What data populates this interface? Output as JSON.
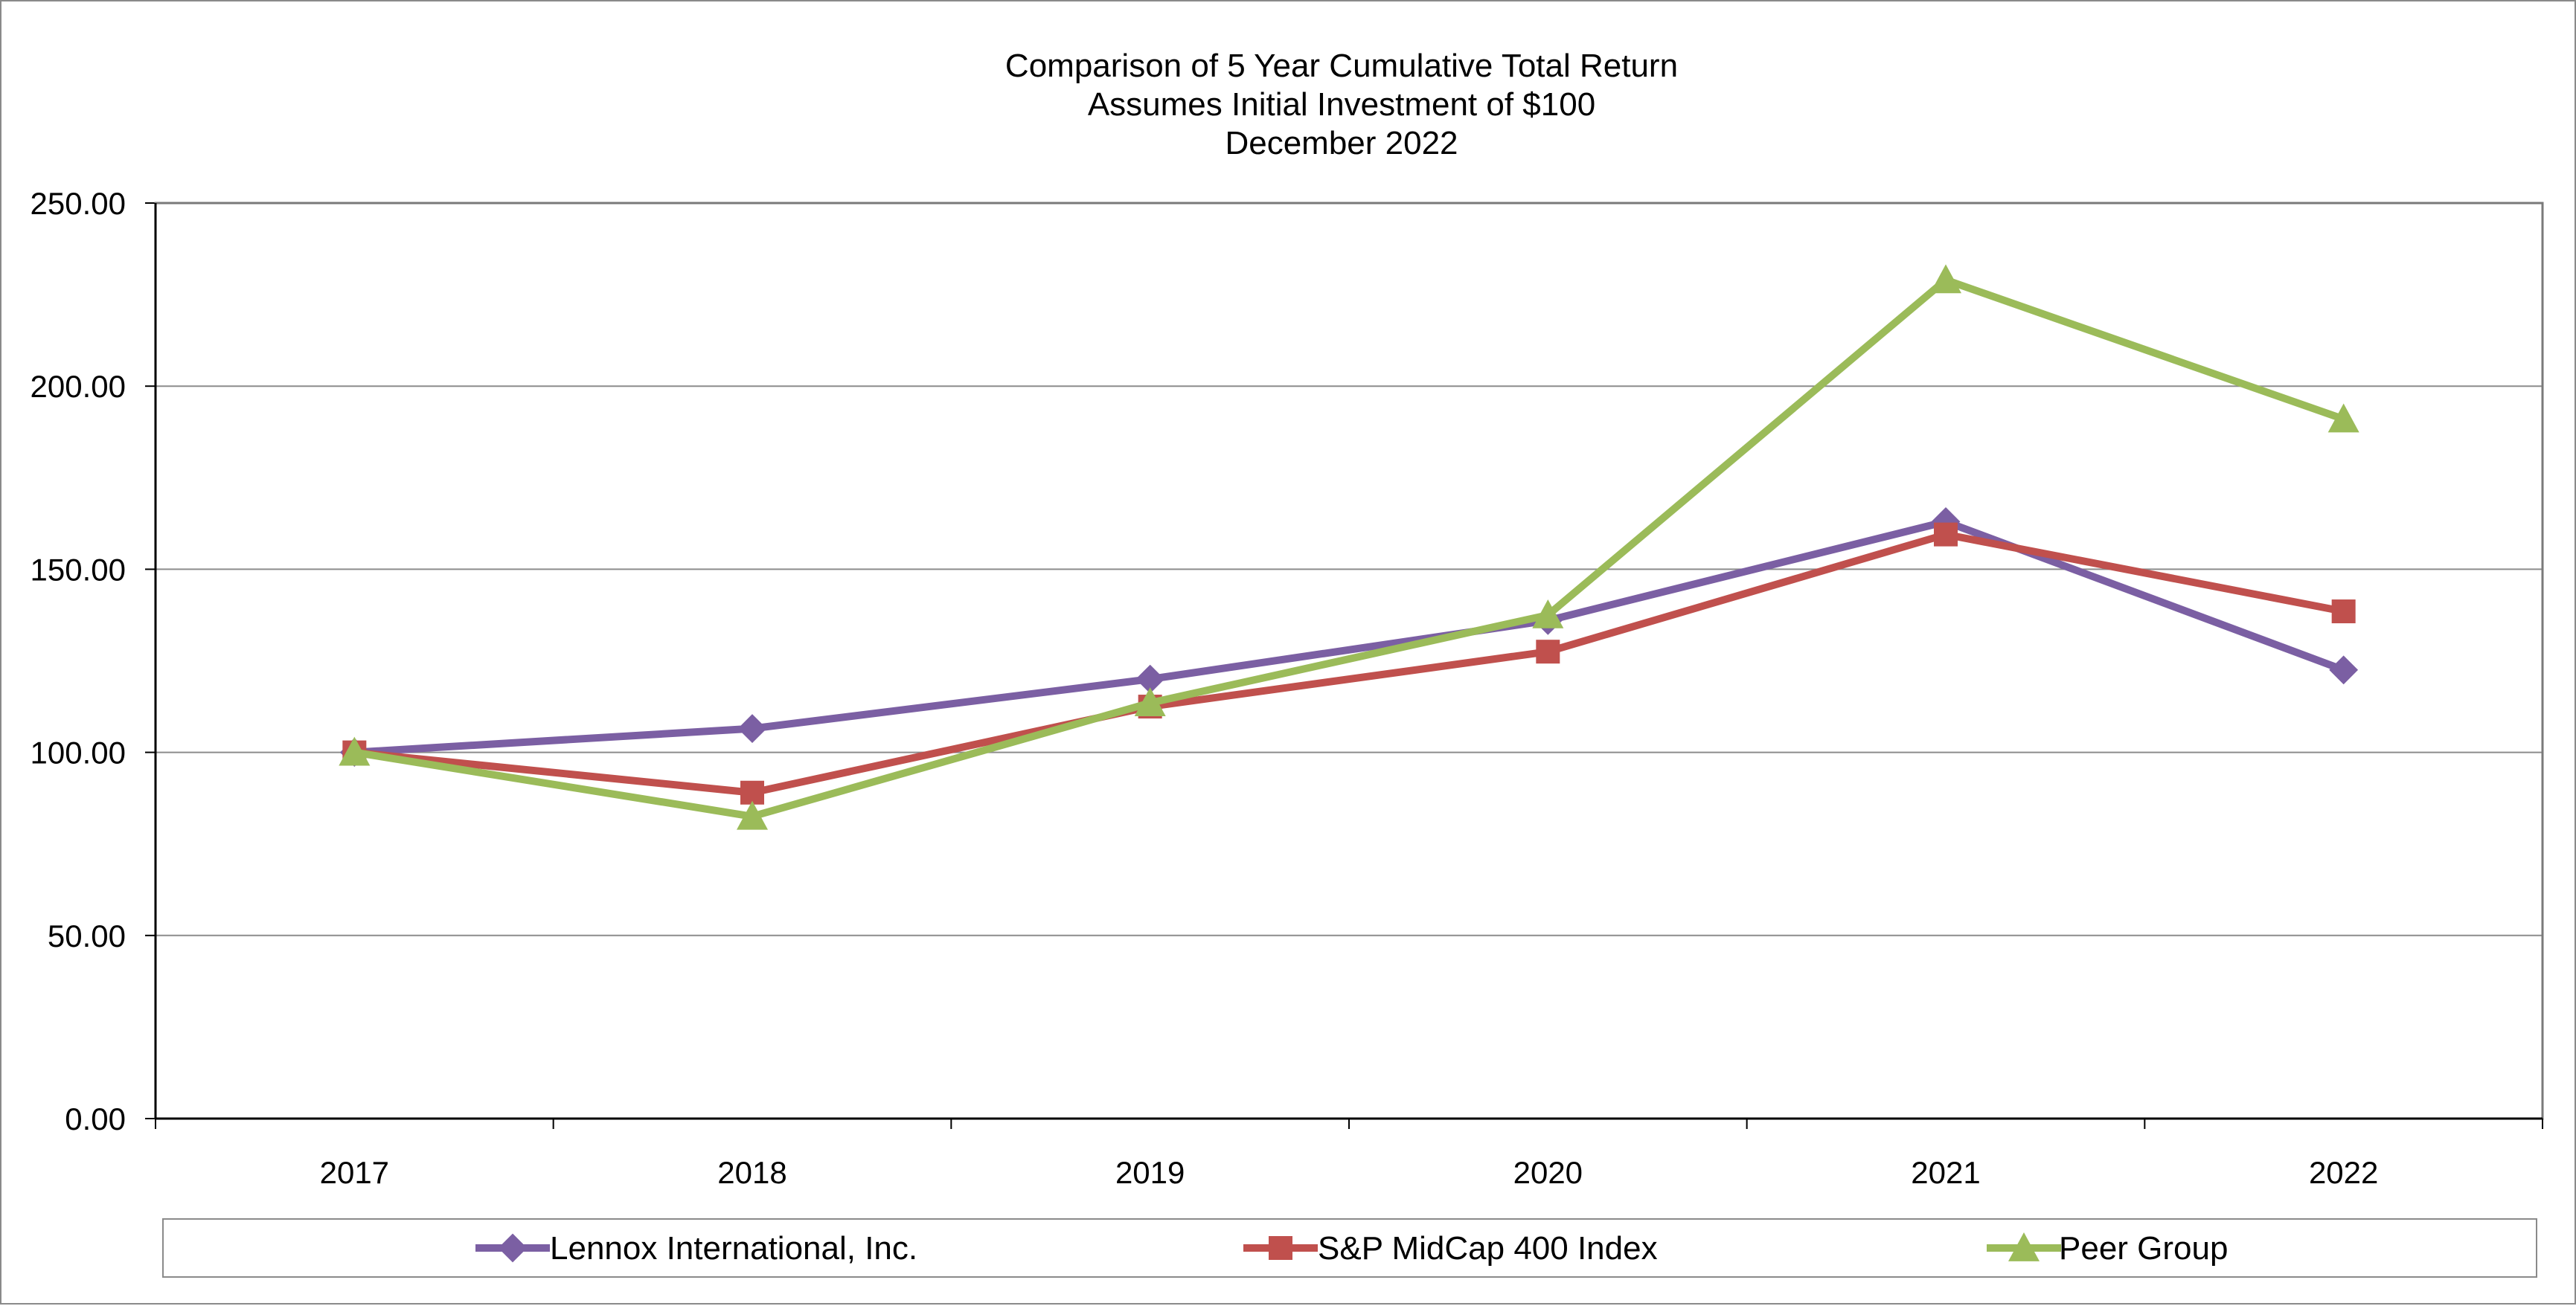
{
  "chart_data": {
    "type": "line",
    "title": [
      "Comparison of 5 Year Cumulative Total Return",
      "Assumes Initial Investment of $100",
      "December 2022"
    ],
    "xlabel": "",
    "ylabel": "",
    "categories": [
      "2017",
      "2018",
      "2019",
      "2020",
      "2021",
      "2022"
    ],
    "ylim": [
      0,
      250
    ],
    "yticks": [
      "0.00",
      "50.00",
      "100.00",
      "150.00",
      "200.00",
      "250.00"
    ],
    "grid": true,
    "legend_position": "bottom",
    "series": [
      {
        "name": "Lennox International, Inc.",
        "marker": "diamond",
        "color": "#7b5fa3",
        "values": [
          100,
          106.5,
          120,
          136,
          163,
          122.5
        ]
      },
      {
        "name": "S&P MidCap 400 Index",
        "marker": "square",
        "color": "#c0504d",
        "values": [
          100,
          89,
          112.5,
          127.5,
          159.5,
          138.5
        ]
      },
      {
        "name": "Peer Group",
        "marker": "triangle",
        "color": "#9bbb59",
        "values": [
          100,
          82.5,
          113.5,
          137.5,
          229,
          191
        ]
      }
    ]
  }
}
